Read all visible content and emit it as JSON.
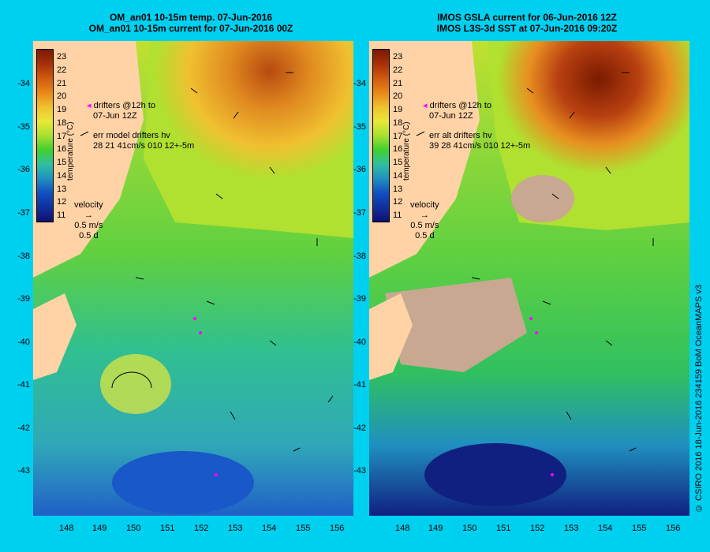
{
  "left_panel": {
    "title_line1": "OM_an01 10-15m temp. 07-Jun-2016",
    "title_line2": "OM_an01 10-15m current for 07-Jun-2016 00Z",
    "drifters_line1": "drifters @12h to",
    "drifters_line2": "07-Jun 12Z",
    "err_line1": "err model drifters hv",
    "err_line2": "28 21 41cm/s 010 12+-5m"
  },
  "right_panel": {
    "title_line1": "IMOS GSLA current for 06-Jun-2016 12Z",
    "title_line2": "IMOS L3S-3d SST at 07-Jun-2016 09:20Z",
    "drifters_line1": "drifters @12h to",
    "drifters_line2": "07-Jun 12Z",
    "err_line1": "err alt drifters hv",
    "err_line2": "39 28 41cm/s 010 12+-5m"
  },
  "velocity_legend": {
    "label": "velocity",
    "speed": "0.5 m/s",
    "time": "0.5 d"
  },
  "colorbar": {
    "title": "temperature (°C)",
    "labels": [
      "23",
      "22",
      "21",
      "20",
      "19",
      "18",
      "17",
      "16",
      "15",
      "14",
      "13",
      "12",
      "11"
    ],
    "colors": [
      "#7a1a00",
      "#a8300a",
      "#d05a10",
      "#e88818",
      "#f0c030",
      "#e8e838",
      "#a8e030",
      "#40d030",
      "#30c0a0",
      "#2090c0",
      "#1050c0",
      "#1030a0",
      "#101070"
    ]
  },
  "x_axis": {
    "labels": [
      "148",
      "149",
      "150",
      "151",
      "152",
      "153",
      "154",
      "155",
      "156"
    ]
  },
  "y_axis": {
    "labels": [
      "-34",
      "-35",
      "-36",
      "-37",
      "-38",
      "-39",
      "-40",
      "-41",
      "-42",
      "-43"
    ]
  },
  "copyright": "© CSIRO 2016  18-Jun-2016 234159 BoM OceanMAPS v3",
  "colors": {
    "background": "#00d0f0",
    "land": "#ffd3a6",
    "cloud": "#c8a890",
    "drifter": "#ff00ff"
  }
}
